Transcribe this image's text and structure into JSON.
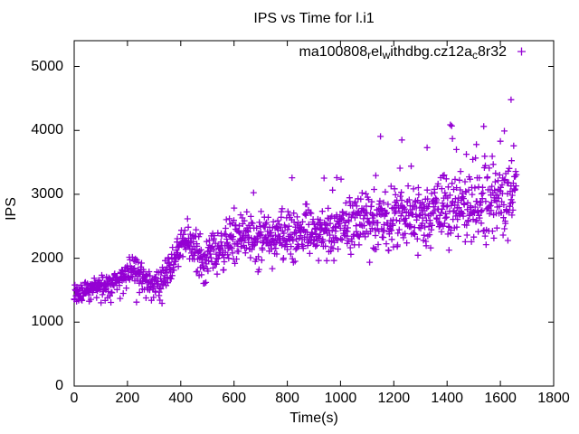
{
  "window": {
    "background": "#ffffff",
    "foreground": "#000000"
  },
  "chart_data": {
    "type": "scatter",
    "title": "IPS vs Time for l.i1",
    "xlabel": "Time(s)",
    "ylabel": "IPS",
    "xlim": [
      0,
      1800
    ],
    "ylim": [
      0,
      5400
    ],
    "xticks": [
      0,
      200,
      400,
      600,
      800,
      1000,
      1200,
      1400,
      1600,
      1800
    ],
    "yticks": [
      0,
      1000,
      2000,
      3000,
      4000,
      5000
    ],
    "grid": false,
    "legend_position": "top-right-inside",
    "series": [
      {
        "name": "ma100808_rel_withdbg.cz12a_c8r32",
        "label_segments": [
          {
            "t": "ma100808"
          },
          {
            "t": "r",
            "sub": true
          },
          {
            "t": "el"
          },
          {
            "t": "w",
            "sub": true
          },
          {
            "t": "ithdbg.cz12a"
          },
          {
            "t": "c",
            "sub": true
          },
          {
            "t": "8r32"
          }
        ],
        "marker": "plus",
        "color": "#9400D3",
        "point_count": 1300,
        "t_max": 1660,
        "seed": 42,
        "trend_anchors": [
          [
            0,
            1430
          ],
          [
            80,
            1530
          ],
          [
            160,
            1630
          ],
          [
            230,
            1840
          ],
          [
            270,
            1620
          ],
          [
            330,
            1570
          ],
          [
            390,
            2150
          ],
          [
            430,
            2280
          ],
          [
            480,
            1980
          ],
          [
            530,
            2050
          ],
          [
            570,
            2260
          ],
          [
            630,
            2300
          ],
          [
            700,
            2360
          ],
          [
            760,
            2310
          ],
          [
            820,
            2370
          ],
          [
            880,
            2460
          ],
          [
            940,
            2410
          ],
          [
            1000,
            2500
          ],
          [
            1060,
            2560
          ],
          [
            1120,
            2530
          ],
          [
            1180,
            2620
          ],
          [
            1240,
            2660
          ],
          [
            1300,
            2620
          ],
          [
            1360,
            2710
          ],
          [
            1420,
            2760
          ],
          [
            1480,
            2720
          ],
          [
            1540,
            2820
          ],
          [
            1600,
            2920
          ],
          [
            1660,
            3020
          ]
        ],
        "spread_anchors": [
          [
            0,
            60
          ],
          [
            150,
            95
          ],
          [
            300,
            140
          ],
          [
            500,
            170
          ],
          [
            800,
            175
          ],
          [
            1100,
            220
          ],
          [
            1400,
            275
          ],
          [
            1660,
            300
          ]
        ],
        "outliers": [
          [
            1640,
            4480
          ],
          [
            1615,
            3990
          ],
          [
            1600,
            3830
          ],
          [
            1510,
            3780
          ],
          [
            1435,
            3700
          ],
          [
            1420,
            3870
          ],
          [
            1325,
            3730
          ],
          [
            1230,
            3850
          ],
          [
            986,
            3260
          ]
        ],
        "outlier_start": 520,
        "outlier_prob": 0.028,
        "low_outlier_prob": 0.013,
        "y_floor": 1255
      }
    ]
  }
}
